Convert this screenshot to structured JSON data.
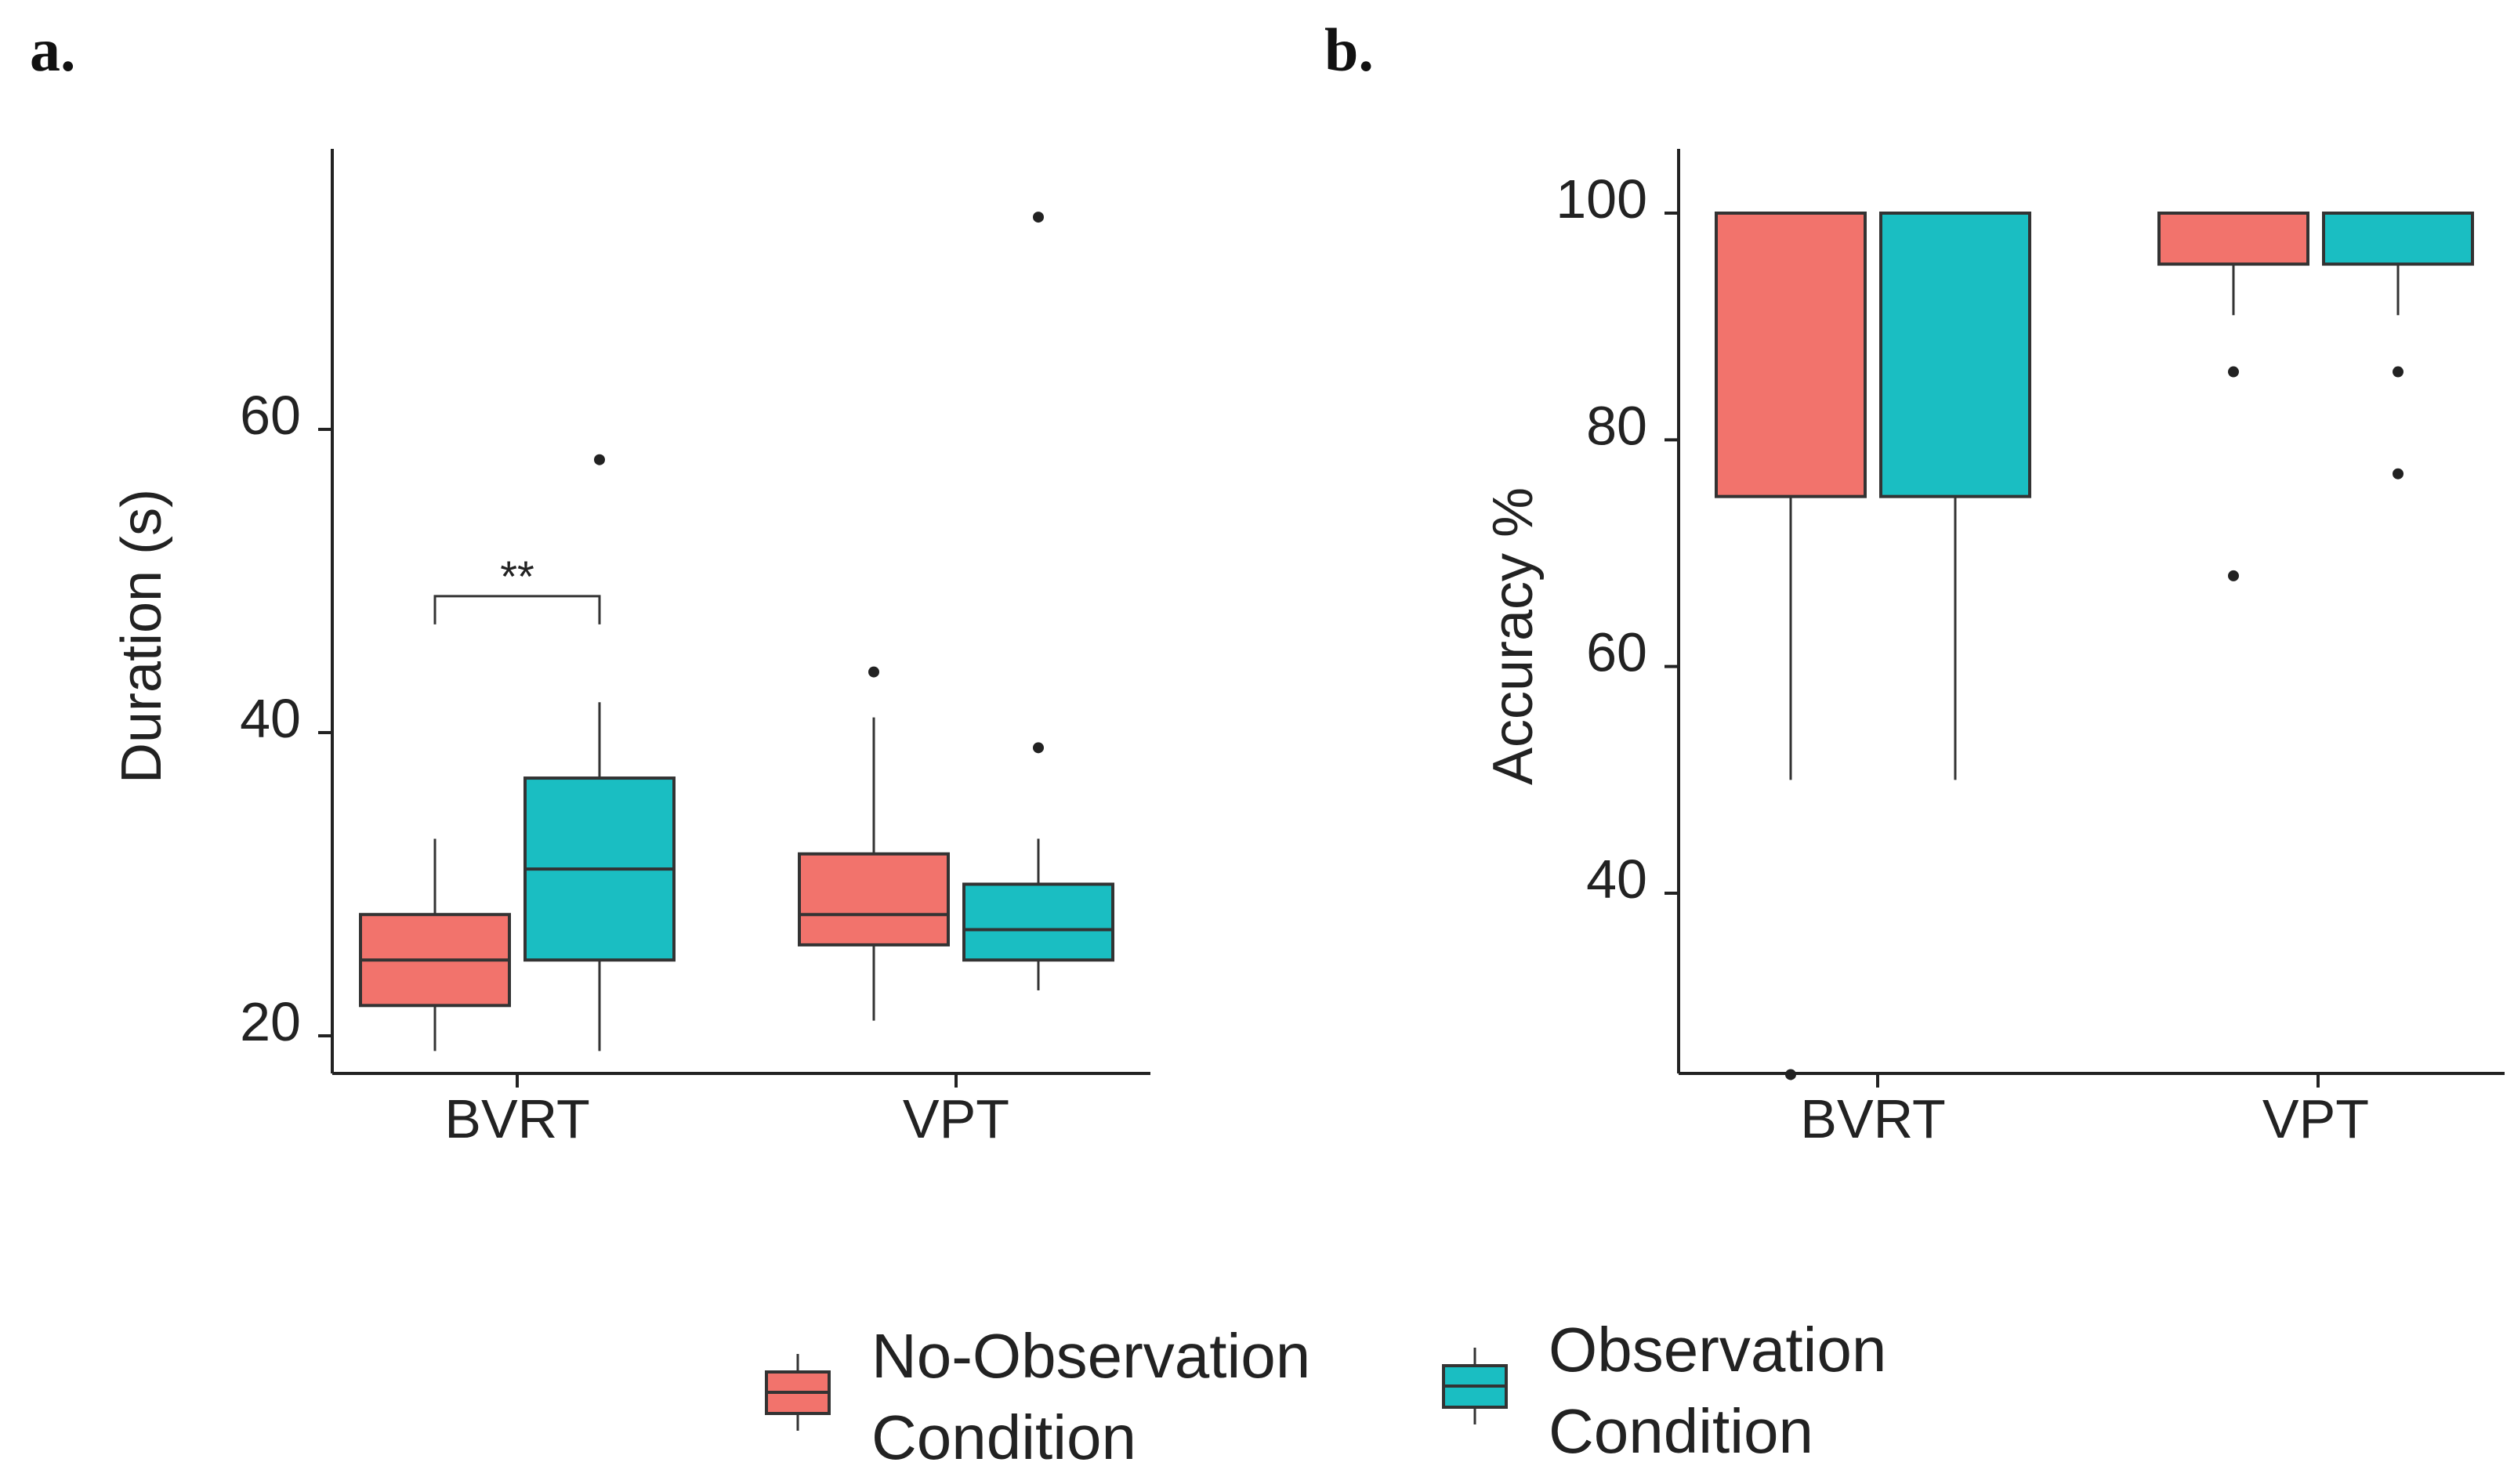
{
  "chart_data": [
    {
      "panel": "a.",
      "type": "box",
      "title": "",
      "xlabel": "",
      "ylabel": "Duration (s)",
      "ylim": [
        17.5,
        78
      ],
      "yticks": [
        20,
        40,
        60
      ],
      "categories": [
        "BVRT",
        "VPT"
      ],
      "series": [
        {
          "name": "No-Observation Condition",
          "boxes": [
            {
              "category": "BVRT",
              "whisker_low": 19,
              "q1": 22,
              "median": 25,
              "q3": 28,
              "whisker_high": 33,
              "outliers": []
            },
            {
              "category": "VPT",
              "whisker_low": 21,
              "q1": 26,
              "median": 28,
              "q3": 32,
              "whisker_high": 41,
              "outliers": [
                44
              ]
            }
          ]
        },
        {
          "name": "Observation Condition",
          "boxes": [
            {
              "category": "BVRT",
              "whisker_low": 19,
              "q1": 25,
              "median": 31,
              "q3": 37,
              "whisker_high": 42,
              "outliers": [
                58
              ]
            },
            {
              "category": "VPT",
              "whisker_low": 23,
              "q1": 25,
              "median": 27,
              "q3": 30,
              "whisker_high": 33,
              "outliers": [
                39,
                74
              ]
            }
          ]
        }
      ],
      "annotations": [
        {
          "text": "**",
          "category": "BVRT",
          "y": 49
        }
      ]
    },
    {
      "panel": "b.",
      "type": "box",
      "title": "",
      "xlabel": "",
      "ylabel": "Accuracy %",
      "ylim": [
        24,
        106
      ],
      "yticks": [
        40,
        60,
        80,
        100
      ],
      "categories": [
        "BVRT",
        "VPT"
      ],
      "series": [
        {
          "name": "No-Observation Condition",
          "boxes": [
            {
              "category": "BVRT",
              "whisker_low": 50,
              "q1": 75,
              "median": 100,
              "q3": 100,
              "whisker_high": 100,
              "outliers": [
                24
              ]
            },
            {
              "category": "VPT",
              "whisker_low": 91,
              "q1": 95.5,
              "median": 100,
              "q3": 100,
              "whisker_high": 100,
              "outliers": [
                86,
                68
              ]
            }
          ]
        },
        {
          "name": "Observation Condition",
          "boxes": [
            {
              "category": "BVRT",
              "whisker_low": 50,
              "q1": 75,
              "median": 100,
              "q3": 100,
              "whisker_high": 100,
              "outliers": []
            },
            {
              "category": "VPT",
              "whisker_low": 91,
              "q1": 95.5,
              "median": 100,
              "q3": 100,
              "whisker_high": 100,
              "outliers": [
                86,
                77
              ]
            }
          ]
        }
      ],
      "annotations": []
    }
  ],
  "legend": {
    "items": [
      {
        "line1": "No-Observation",
        "line2": "Condition",
        "color": "#F2736C"
      },
      {
        "line1": "Observation",
        "line2": "Condition",
        "color": "#1ABEC2"
      }
    ]
  },
  "colors": {
    "no_observation": "#F2736C",
    "observation": "#1ABEC2",
    "outline": "#333333"
  }
}
